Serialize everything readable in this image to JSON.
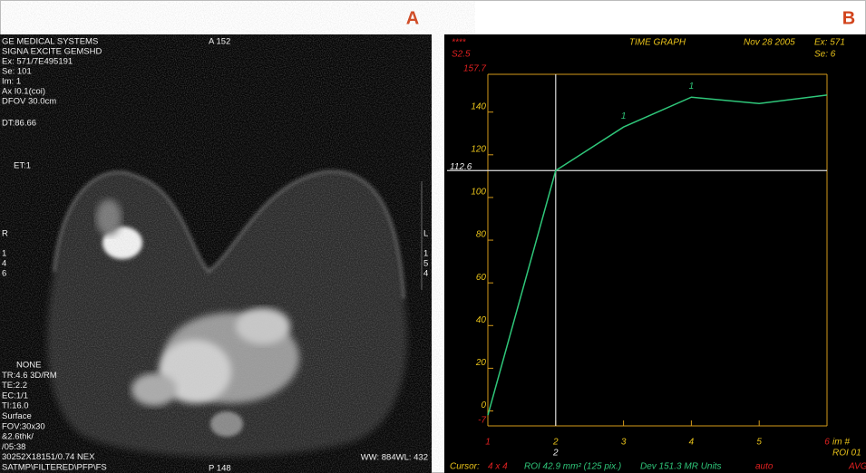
{
  "labels": {
    "a": "A",
    "b": "B"
  },
  "panel_a": {
    "top_left": [
      "GE MEDICAL SYSTEMS",
      "SIGNA EXCITE GEMSHD",
      "Ex: 571/7E495191",
      "Se: 101",
      "Im: 1",
      "Ax  I0.1(coi)",
      "DFOV 30.0cm"
    ],
    "top_center": "A 152",
    "dt": "DT:86.66",
    "et": "ET:1",
    "left_marks": [
      "R",
      "1",
      "4",
      "6"
    ],
    "right_marks": [
      "L",
      "1",
      "5",
      "4"
    ],
    "bottom_left": [
      "NONE",
      "TR:4.6 3D/RM",
      "TE:2.2",
      "EC:1/1",
      "TI:16.0",
      "Surface",
      "FOV:30x30",
      "&2.6thk/",
      "/05:38",
      "30252X18151/0.74 NEX",
      "SATMP\\FILTERED\\PFP\\FS"
    ],
    "bottom_center": "P 148",
    "bottom_right": "WW: 884WL: 432"
  },
  "panel_b": {
    "header": {
      "marker": "****",
      "slice": "S2.5",
      "date": "Nov 28 2005",
      "exam": "Ex: 571",
      "series": "Se: 6"
    },
    "chart": {
      "type": "line",
      "title": "TIME GRAPH",
      "x_label": "im #",
      "categories": [
        "1",
        "2",
        "3",
        "4",
        "5",
        "6"
      ],
      "values": [
        -2,
        112.6,
        133,
        147,
        144,
        148
      ],
      "color": "#2fc77a",
      "ylim": [
        -7,
        157.7
      ],
      "yticks": [
        -7,
        0,
        20,
        40,
        60,
        80,
        100,
        120,
        140,
        157.7
      ],
      "cursor": {
        "x": "2",
        "y": 112.6
      },
      "annotations": [
        {
          "text": "1",
          "x": "3"
        },
        {
          "text": "1",
          "x": "4"
        }
      ]
    },
    "roi": "ROI 01",
    "footer": [
      "Cursor:",
      "4 x 4",
      "ROI 42.9 mm² (125 pix.)",
      "Dev 151.3 MR Units",
      "auto",
      "AVG"
    ]
  }
}
